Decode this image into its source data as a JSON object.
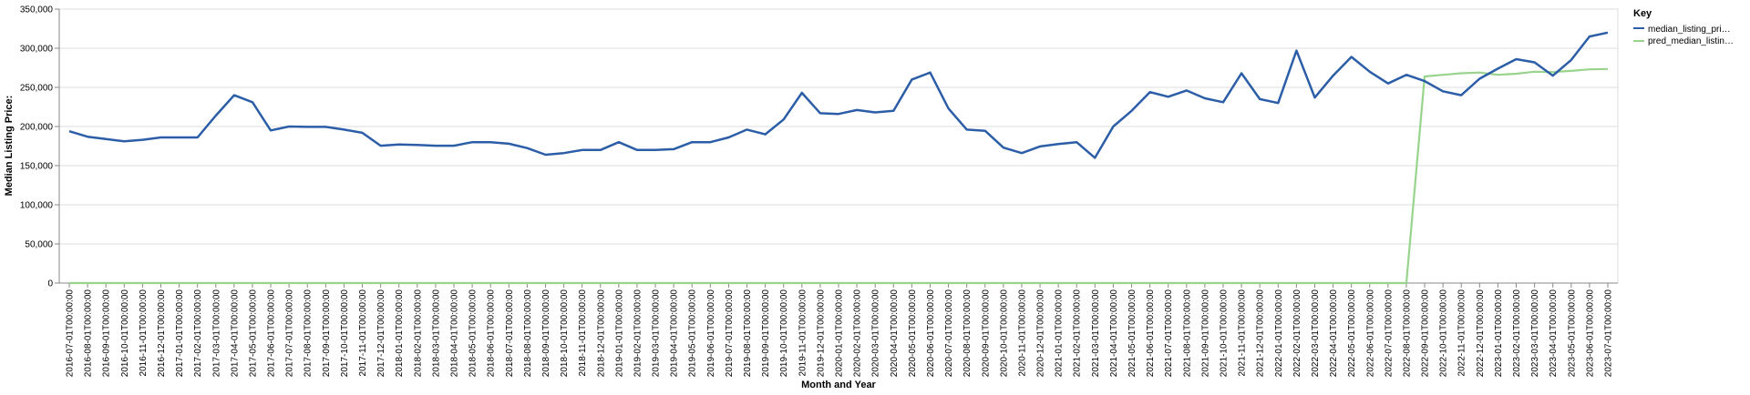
{
  "chart_data": {
    "type": "line",
    "xlabel": "Month and Year",
    "ylabel": "Median Listing Price:",
    "ylim": [
      0,
      350000
    ],
    "y_ticks": [
      "0",
      "50,000",
      "100,000",
      "150,000",
      "200,000",
      "250,000",
      "300,000",
      "350,000"
    ],
    "grid": true,
    "legend": {
      "title": "Key",
      "position": "top-right",
      "entries": [
        "median_listing_pri…",
        "pred_median_listin…"
      ]
    },
    "x": [
      "2016-07-01T00:00:00",
      "2016-08-01T00:00:00",
      "2016-09-01T00:00:00",
      "2016-10-01T00:00:00",
      "2016-11-01T00:00:00",
      "2016-12-01T00:00:00",
      "2017-01-01T00:00:00",
      "2017-02-01T00:00:00",
      "2017-03-01T00:00:00",
      "2017-04-01T00:00:00",
      "2017-05-01T00:00:00",
      "2017-06-01T00:00:00",
      "2017-07-01T00:00:00",
      "2017-08-01T00:00:00",
      "2017-09-01T00:00:00",
      "2017-10-01T00:00:00",
      "2017-11-01T00:00:00",
      "2017-12-01T00:00:00",
      "2018-01-01T00:00:00",
      "2018-02-01T00:00:00",
      "2018-03-01T00:00:00",
      "2018-04-01T00:00:00",
      "2018-05-01T00:00:00",
      "2018-06-01T00:00:00",
      "2018-07-01T00:00:00",
      "2018-08-01T00:00:00",
      "2018-09-01T00:00:00",
      "2018-10-01T00:00:00",
      "2018-11-01T00:00:00",
      "2018-12-01T00:00:00",
      "2019-01-01T00:00:00",
      "2019-02-01T00:00:00",
      "2019-03-01T00:00:00",
      "2019-04-01T00:00:00",
      "2019-05-01T00:00:00",
      "2019-06-01T00:00:00",
      "2019-07-01T00:00:00",
      "2019-08-01T00:00:00",
      "2019-09-01T00:00:00",
      "2019-10-01T00:00:00",
      "2019-11-01T00:00:00",
      "2019-12-01T00:00:00",
      "2020-01-01T00:00:00",
      "2020-02-01T00:00:00",
      "2020-03-01T00:00:00",
      "2020-04-01T00:00:00",
      "2020-05-01T00:00:00",
      "2020-06-01T00:00:00",
      "2020-07-01T00:00:00",
      "2020-08-01T00:00:00",
      "2020-09-01T00:00:00",
      "2020-10-01T00:00:00",
      "2020-11-01T00:00:00",
      "2020-12-01T00:00:00",
      "2021-01-01T00:00:00",
      "2021-02-01T00:00:00",
      "2021-03-01T00:00:00",
      "2021-04-01T00:00:00",
      "2021-05-01T00:00:00",
      "2021-06-01T00:00:00",
      "2021-07-01T00:00:00",
      "2021-08-01T00:00:00",
      "2021-09-01T00:00:00",
      "2021-10-01T00:00:00",
      "2021-11-01T00:00:00",
      "2021-12-01T00:00:00",
      "2022-01-01T00:00:00",
      "2022-02-01T00:00:00",
      "2022-03-01T00:00:00",
      "2022-04-01T00:00:00",
      "2022-05-01T00:00:00",
      "2022-06-01T00:00:00",
      "2022-07-01T00:00:00",
      "2022-08-01T00:00:00",
      "2022-09-01T00:00:00",
      "2022-10-01T00:00:00",
      "2022-11-01T00:00:00",
      "2022-12-01T00:00:00",
      "2023-01-01T00:00:00",
      "2023-02-01T00:00:00",
      "2023-03-01T00:00:00",
      "2023-04-01T00:00:00",
      "2023-05-01T00:00:00",
      "2023-06-01T00:00:00",
      "2023-07-01T00:00:00"
    ],
    "series": [
      {
        "name": "median_listing_pri…",
        "color": "#2c5ea8",
        "values": [
          194000,
          187000,
          184000,
          181000,
          183000,
          186000,
          186000,
          186000,
          214000,
          240000,
          231000,
          195000,
          200000,
          199500,
          199500,
          196000,
          192000,
          175500,
          177000,
          176500,
          175500,
          175500,
          180000,
          180000,
          178000,
          172500,
          164000,
          166000,
          170000,
          170000,
          180000,
          170000,
          170000,
          171000,
          180000,
          180000,
          186000,
          196000,
          190000,
          209000,
          243000,
          217000,
          216000,
          221000,
          218000,
          220000,
          260000,
          269000,
          223000,
          196000,
          194500,
          173000,
          166000,
          174500,
          177500,
          180000,
          160000,
          200000,
          220000,
          244000,
          238000,
          246000,
          236000,
          231000,
          268000,
          235000,
          230000,
          297000,
          237000,
          265000,
          289000,
          270000,
          255000,
          266000,
          258000,
          245000,
          240000,
          261000,
          274000,
          286000,
          282000,
          265000,
          285000,
          315000,
          320000
        ]
      },
      {
        "name": "pred_median_listin…",
        "color": "#98d48c",
        "values": [
          0,
          0,
          0,
          0,
          0,
          0,
          0,
          0,
          0,
          0,
          0,
          0,
          0,
          0,
          0,
          0,
          0,
          0,
          0,
          0,
          0,
          0,
          0,
          0,
          0,
          0,
          0,
          0,
          0,
          0,
          0,
          0,
          0,
          0,
          0,
          0,
          0,
          0,
          0,
          0,
          0,
          0,
          0,
          0,
          0,
          0,
          0,
          0,
          0,
          0,
          0,
          0,
          0,
          0,
          0,
          0,
          0,
          0,
          0,
          0,
          0,
          0,
          0,
          0,
          0,
          0,
          0,
          0,
          0,
          0,
          0,
          0,
          0,
          0,
          264000,
          266000,
          268000,
          269000,
          266000,
          267500,
          270000,
          269500,
          271000,
          273000,
          273500
        ]
      }
    ]
  }
}
